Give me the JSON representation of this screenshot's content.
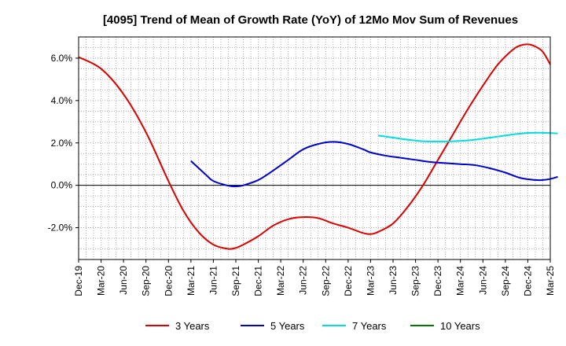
{
  "chart_data": {
    "type": "line",
    "title": "[4095]  Trend of Mean of Growth Rate (YoY) of 12Mo Mov Sum of Revenues",
    "xlabel": "",
    "ylabel": "",
    "ylim": [
      -3.5,
      7.0
    ],
    "yticks": [
      -2.0,
      0.0,
      2.0,
      4.0,
      6.0
    ],
    "ytick_labels": [
      "-2.0%",
      "0.0%",
      "2.0%",
      "4.0%",
      "6.0%"
    ],
    "x_start": "Dec-19",
    "x_end_index": 63,
    "xtick_labels": [
      "Dec-19",
      "Mar-20",
      "Jun-20",
      "Sep-20",
      "Dec-20",
      "Mar-21",
      "Jun-21",
      "Sep-21",
      "Dec-21",
      "Mar-22",
      "Jun-22",
      "Sep-22",
      "Dec-22",
      "Mar-23",
      "Jun-23",
      "Sep-23",
      "Dec-23",
      "Mar-24",
      "Jun-24",
      "Sep-24",
      "Dec-24",
      "Mar-25"
    ],
    "grid": true,
    "legend_position": "bottom",
    "series": [
      {
        "name": "3 Years",
        "color": "#dd0000",
        "points": [
          [
            0,
            6.05
          ],
          [
            3,
            5.5
          ],
          [
            6,
            4.3
          ],
          [
            9,
            2.5
          ],
          [
            12,
            0.2
          ],
          [
            14,
            -1.2
          ],
          [
            16,
            -2.2
          ],
          [
            18,
            -2.8
          ],
          [
            20,
            -3.0
          ],
          [
            21,
            -2.95
          ],
          [
            22,
            -2.8
          ],
          [
            24,
            -2.4
          ],
          [
            26,
            -1.9
          ],
          [
            28,
            -1.6
          ],
          [
            30,
            -1.5
          ],
          [
            32,
            -1.55
          ],
          [
            34,
            -1.8
          ],
          [
            36,
            -2.0
          ],
          [
            38,
            -2.25
          ],
          [
            39,
            -2.3
          ],
          [
            40,
            -2.2
          ],
          [
            42,
            -1.8
          ],
          [
            44,
            -1.0
          ],
          [
            46,
            0.0
          ],
          [
            48,
            1.2
          ],
          [
            50,
            2.4
          ],
          [
            52,
            3.6
          ],
          [
            54,
            4.7
          ],
          [
            56,
            5.7
          ],
          [
            58,
            6.4
          ],
          [
            59,
            6.6
          ],
          [
            60,
            6.65
          ],
          [
            61,
            6.55
          ],
          [
            62,
            6.3
          ],
          [
            63,
            5.7
          ]
        ]
      },
      {
        "name": "5 Years",
        "color": "#0000cc",
        "points": [
          [
            15,
            1.15
          ],
          [
            17,
            0.5
          ],
          [
            18,
            0.2
          ],
          [
            20,
            -0.02
          ],
          [
            21,
            -0.05
          ],
          [
            22,
            0.0
          ],
          [
            24,
            0.25
          ],
          [
            26,
            0.7
          ],
          [
            28,
            1.2
          ],
          [
            30,
            1.7
          ],
          [
            32,
            1.95
          ],
          [
            34,
            2.05
          ],
          [
            36,
            1.95
          ],
          [
            38,
            1.7
          ],
          [
            39,
            1.55
          ],
          [
            41,
            1.4
          ],
          [
            43,
            1.3
          ],
          [
            45,
            1.2
          ],
          [
            47,
            1.1
          ],
          [
            49,
            1.05
          ],
          [
            51,
            1.0
          ],
          [
            53,
            0.95
          ],
          [
            55,
            0.8
          ],
          [
            57,
            0.6
          ],
          [
            59,
            0.35
          ],
          [
            61,
            0.25
          ],
          [
            62,
            0.25
          ],
          [
            63,
            0.3
          ],
          [
            64,
            0.4
          ]
        ]
      },
      {
        "name": "7 Years",
        "color": "#00dddd",
        "points": [
          [
            40,
            2.35
          ],
          [
            42,
            2.25
          ],
          [
            44,
            2.15
          ],
          [
            46,
            2.08
          ],
          [
            48,
            2.07
          ],
          [
            50,
            2.08
          ],
          [
            52,
            2.12
          ],
          [
            54,
            2.2
          ],
          [
            56,
            2.3
          ],
          [
            58,
            2.4
          ],
          [
            60,
            2.47
          ],
          [
            62,
            2.48
          ],
          [
            64,
            2.45
          ]
        ]
      },
      {
        "name": "10 Years",
        "color": "#007700",
        "points": []
      }
    ]
  }
}
